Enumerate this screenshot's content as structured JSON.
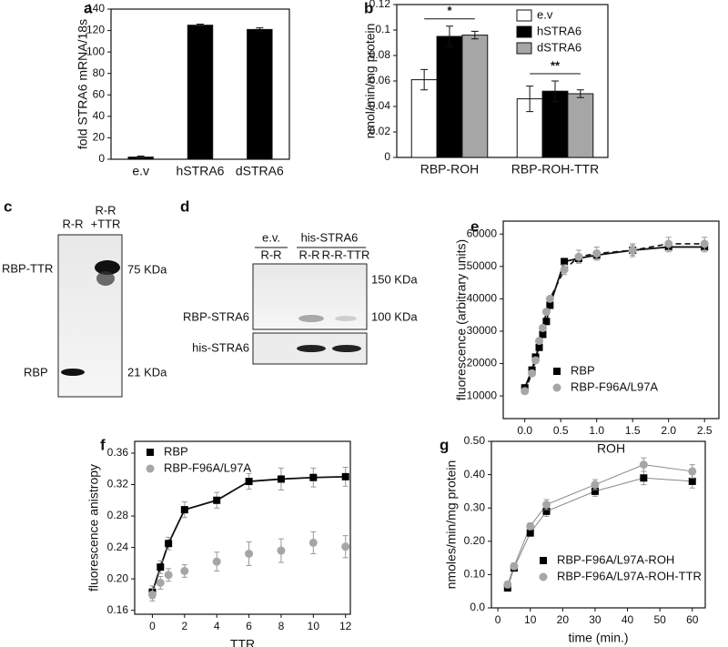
{
  "chart_data": [
    {
      "panel": "a",
      "type": "bar",
      "ylabel": "fold STRA6 mRNA/18s",
      "categories": [
        "e.v",
        "hSTRA6",
        "dSTRA6"
      ],
      "values": [
        2,
        125,
        121
      ],
      "errors": [
        1,
        1,
        1.5
      ],
      "color": "#000000",
      "ylim": [
        0,
        140
      ],
      "yticks": [
        0,
        20,
        40,
        60,
        80,
        100,
        120,
        140
      ]
    },
    {
      "panel": "b",
      "type": "bar",
      "ylabel": "nmol/min/mg protein",
      "categories": [
        "RBP-ROH",
        "RBP-ROH-TTR"
      ],
      "series": [
        {
          "name": "e.v",
          "color": "#ffffff",
          "values": [
            0.061,
            0.046
          ],
          "errors": [
            0.008,
            0.01
          ]
        },
        {
          "name": "hSTRA6",
          "color": "#000000",
          "values": [
            0.095,
            0.052
          ],
          "errors": [
            0.008,
            0.008
          ]
        },
        {
          "name": "dSTRA6",
          "color": "#a6a6a6",
          "values": [
            0.096,
            0.05
          ],
          "errors": [
            0.003,
            0.003
          ]
        }
      ],
      "annotations": [
        "*",
        "**"
      ],
      "ylim": [
        0,
        0.12
      ],
      "yticks": [
        0,
        0.02,
        0.04,
        0.06,
        0.08,
        0.1,
        0.12
      ],
      "legend": "upper-right"
    },
    {
      "panel": "e",
      "type": "scatter",
      "xlabel": "ROH",
      "ylabel": "fluorescence  (arbitrary units)",
      "series": [
        {
          "name": "RBP",
          "color": "#000000",
          "marker": "square",
          "line": "solid",
          "x": [
            0,
            0.1,
            0.15,
            0.2,
            0.25,
            0.3,
            0.35,
            0.55,
            0.75,
            1.0,
            1.5,
            2.0,
            2.5
          ],
          "values": [
            12500,
            18000,
            22000,
            25000,
            29000,
            33000,
            38000,
            51500,
            52500,
            53500,
            55000,
            56000,
            56000
          ],
          "errors": [
            800,
            800,
            800,
            800,
            800,
            800,
            800,
            1000,
            1200,
            1500,
            1500,
            1500,
            1500
          ]
        },
        {
          "name": "RBP-F96A/L97A",
          "color": "#a6a6a6",
          "marker": "circle",
          "line": "dashed",
          "x": [
            0,
            0.1,
            0.15,
            0.2,
            0.25,
            0.3,
            0.35,
            0.55,
            0.75,
            1.0,
            1.5,
            2.0,
            2.5
          ],
          "values": [
            11500,
            17000,
            21000,
            27000,
            31000,
            36000,
            40000,
            49000,
            53000,
            54000,
            55000,
            57000,
            57000
          ],
          "errors": [
            800,
            800,
            800,
            800,
            800,
            800,
            800,
            1500,
            2000,
            2000,
            2000,
            2000,
            2000
          ]
        }
      ],
      "xlim": [
        -0.3,
        2.7
      ],
      "xticks": [
        {
          "value": 0,
          "label": "0.0"
        },
        0.5,
        {
          "value": 1,
          "label": "1.0"
        },
        1.5,
        {
          "value": 2,
          "label": "2.0"
        },
        2.5
      ],
      "ylim": [
        3000,
        64000
      ],
      "yticks": [
        10000,
        20000,
        30000,
        40000,
        50000,
        60000
      ],
      "legend": "lower-right"
    },
    {
      "panel": "f",
      "type": "scatter",
      "xlabel": "TTR",
      "ylabel": "fluorescence anistropy",
      "series": [
        {
          "name": "RBP",
          "color": "#000000",
          "marker": "square",
          "line": "solid",
          "x": [
            0,
            0.5,
            1,
            2,
            4,
            6,
            8,
            10,
            12
          ],
          "values": [
            0.183,
            0.215,
            0.245,
            0.288,
            0.3,
            0.324,
            0.327,
            0.329,
            0.33
          ],
          "errors": [
            0.008,
            0.008,
            0.008,
            0.01,
            0.01,
            0.01,
            0.014,
            0.012,
            0.012
          ]
        },
        {
          "name": "RBP-F96A/L97A",
          "color": "#a6a6a6",
          "marker": "circle",
          "line": "none",
          "x": [
            0,
            0.5,
            1,
            2,
            4,
            6,
            8,
            10,
            12
          ],
          "values": [
            0.18,
            0.195,
            0.205,
            0.21,
            0.222,
            0.232,
            0.236,
            0.246,
            0.241
          ],
          "errors": [
            0.008,
            0.008,
            0.008,
            0.008,
            0.012,
            0.015,
            0.015,
            0.014,
            0.014
          ]
        }
      ],
      "xlim": [
        -1.1,
        12.3
      ],
      "xticks": [
        0,
        2,
        4,
        6,
        8,
        10,
        12
      ],
      "ylim": [
        0.155,
        0.375
      ],
      "yticks": [
        0.16,
        {
          "value": 0.2,
          "label": "0.20"
        },
        0.24,
        0.28,
        0.32,
        0.36
      ],
      "legend": "upper-left"
    },
    {
      "panel": "g",
      "type": "scatter",
      "xlabel": "time (min.)",
      "ylabel": "nmoles/min/mg protein",
      "series": [
        {
          "name": "RBP-F96A/L97A-ROH",
          "color": "#000000",
          "marker": "square",
          "line": "thin",
          "x": [
            3,
            5,
            10,
            15,
            30,
            45,
            60
          ],
          "values": [
            0.06,
            0.12,
            0.225,
            0.29,
            0.35,
            0.39,
            0.38
          ],
          "errors": [
            0.01,
            0.01,
            0.01,
            0.015,
            0.015,
            0.02,
            0.02
          ]
        },
        {
          "name": "RBP-F96A/L97A-ROH-TTR",
          "color": "#a6a6a6",
          "marker": "circle",
          "line": "thin",
          "x": [
            3,
            5,
            10,
            15,
            30,
            45,
            60
          ],
          "values": [
            0.07,
            0.125,
            0.245,
            0.31,
            0.37,
            0.43,
            0.41
          ],
          "errors": [
            0.01,
            0.01,
            0.01,
            0.015,
            0.015,
            0.02,
            0.02
          ]
        }
      ],
      "xlim": [
        -2,
        64
      ],
      "xticks": [
        0,
        10,
        20,
        30,
        40,
        50,
        60
      ],
      "ylim": [
        0,
        0.5
      ],
      "yticks": [
        {
          "value": 0,
          "label": "0.0"
        },
        {
          "value": 0.1,
          "label": "0.10"
        },
        {
          "value": 0.2,
          "label": "0.20"
        },
        {
          "value": 0.3,
          "label": "0.30"
        },
        {
          "value": 0.4,
          "label": "0.40"
        },
        {
          "value": 0.5,
          "label": "0.50"
        }
      ],
      "legend": "lower-right"
    }
  ],
  "blots": {
    "c": {
      "panel": "c",
      "lanes": [
        "R-R",
        "R-R",
        "+TTR"
      ],
      "bands": [
        "RBP-TTR",
        "RBP"
      ],
      "markers": [
        "75 KDa",
        "21 KDa"
      ]
    },
    "d": {
      "panel": "d",
      "groups": [
        "e.v.",
        "his-STRA6"
      ],
      "lanes": [
        "R-R",
        "R-R",
        "R-R-TTR"
      ],
      "markers": [
        "150 KDa",
        "100 KDa"
      ],
      "bands": [
        "RBP-STRA6",
        "his-STRA6"
      ]
    }
  }
}
